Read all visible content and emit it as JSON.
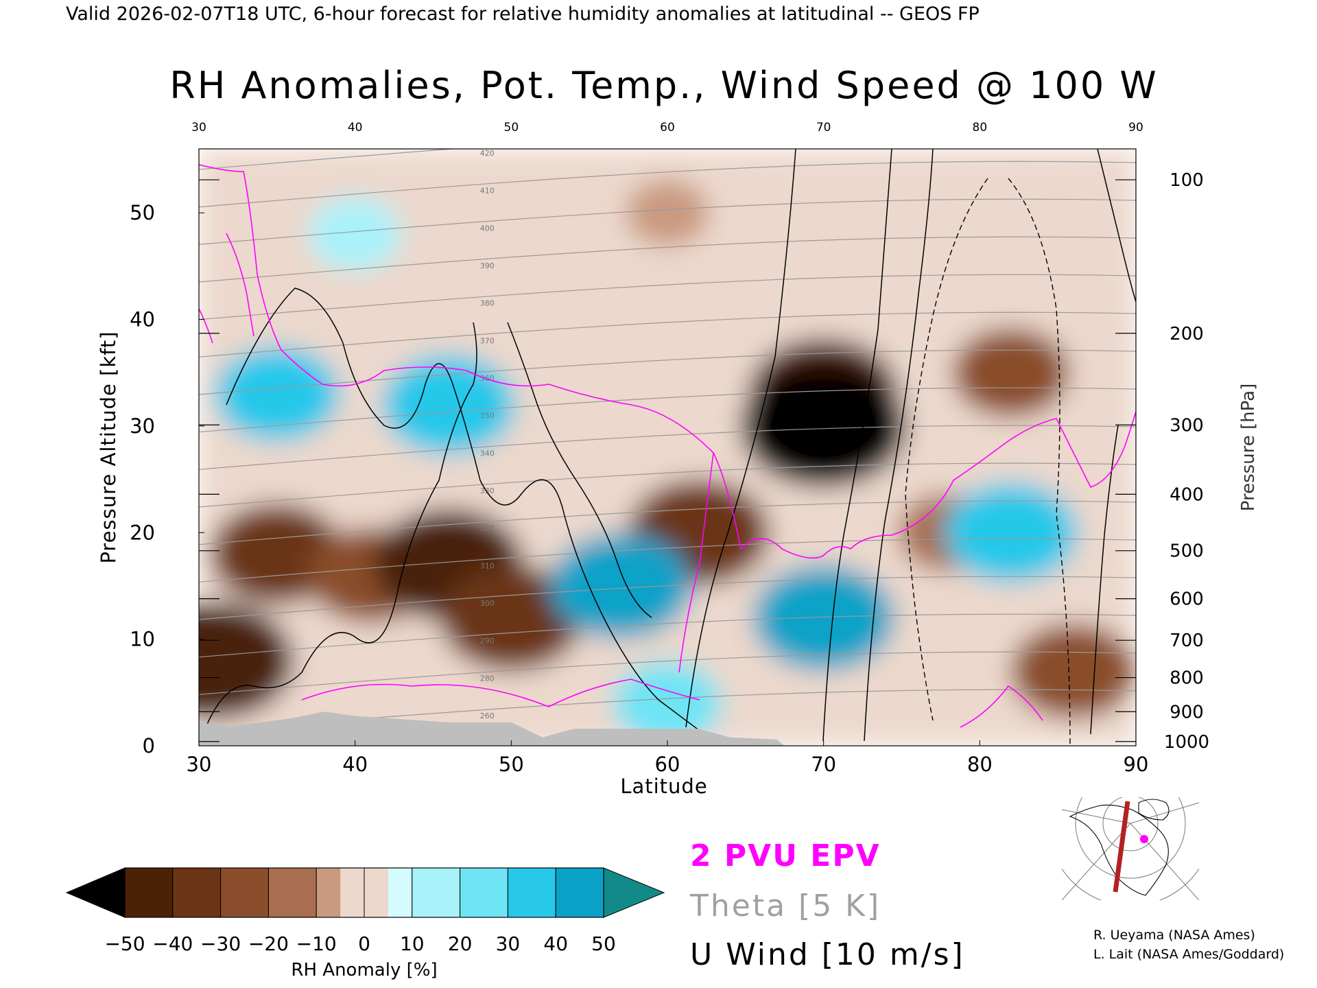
{
  "header": {
    "valid_line": "Valid 2026-02-07T18 UTC, 6-hour forecast for relative humidity anomalies at latitudinal -- GEOS FP"
  },
  "chart_data": {
    "type": "heatmap",
    "title": "RH Anomalies, Pot. Temp., Wind Speed @ 100 W",
    "xlabel": "Latitude",
    "ylabel_left": "Pressure Altitude [kft]",
    "ylabel_right": "Pressure [hPa]",
    "xlim": [
      30,
      90
    ],
    "ylim": [
      0,
      56
    ],
    "x_ticks": [
      30,
      40,
      50,
      60,
      70,
      80,
      90
    ],
    "x_ticks_top": [
      30,
      40,
      50,
      60,
      70,
      80,
      90
    ],
    "y_ticks": [
      0,
      10,
      20,
      30,
      40,
      50
    ],
    "pressure_ticks": [
      {
        "hpa": 100,
        "kft": 53.1
      },
      {
        "hpa": 200,
        "kft": 38.7
      },
      {
        "hpa": 300,
        "kft": 30.1
      },
      {
        "hpa": 400,
        "kft": 23.6
      },
      {
        "hpa": 500,
        "kft": 18.3
      },
      {
        "hpa": 600,
        "kft": 13.8
      },
      {
        "hpa": 700,
        "kft": 9.9
      },
      {
        "hpa": 800,
        "kft": 6.4
      },
      {
        "hpa": 900,
        "kft": 3.2
      },
      {
        "hpa": 1000,
        "kft": 0.4
      }
    ],
    "rh_anomaly_regions": [
      {
        "lat": 31,
        "kft": 8,
        "value": -50
      },
      {
        "lat": 35,
        "kft": 18,
        "value": -35
      },
      {
        "lat": 41,
        "kft": 16,
        "value": -30
      },
      {
        "lat": 46,
        "kft": 17,
        "value": -45
      },
      {
        "lat": 50,
        "kft": 12,
        "value": -40
      },
      {
        "lat": 62,
        "kft": 20,
        "value": -40
      },
      {
        "lat": 70,
        "kft": 33,
        "value": -45
      },
      {
        "lat": 70,
        "kft": 30,
        "value": -55
      },
      {
        "lat": 82,
        "kft": 35,
        "value": -25
      },
      {
        "lat": 78,
        "kft": 20,
        "value": -15
      },
      {
        "lat": 86,
        "kft": 7,
        "value": -30
      },
      {
        "lat": 35,
        "kft": 33,
        "value": 30
      },
      {
        "lat": 46,
        "kft": 32,
        "value": 35
      },
      {
        "lat": 57,
        "kft": 15,
        "value": 40
      },
      {
        "lat": 70,
        "kft": 12,
        "value": 40
      },
      {
        "lat": 82,
        "kft": 20,
        "value": 35
      },
      {
        "lat": 60,
        "kft": 4,
        "value": 20
      },
      {
        "lat": 60,
        "kft": 50,
        "value": -5
      },
      {
        "lat": 40,
        "kft": 48,
        "value": 10
      }
    ],
    "theta_contours_K": [
      260,
      280,
      290,
      300,
      310,
      320,
      330,
      340,
      350,
      360,
      370,
      380,
      390,
      400,
      410,
      420
    ],
    "u_wind_contours_ms": [
      -10,
      0,
      10,
      30
    ],
    "terrain": [
      {
        "lat": 30,
        "kft": 2.2
      },
      {
        "lat": 32,
        "kft": 1.8
      },
      {
        "lat": 34,
        "kft": 2.2
      },
      {
        "lat": 36,
        "kft": 2.6
      },
      {
        "lat": 38,
        "kft": 3.2
      },
      {
        "lat": 40,
        "kft": 2.8
      },
      {
        "lat": 43,
        "kft": 2.5
      },
      {
        "lat": 46,
        "kft": 2.2
      },
      {
        "lat": 50,
        "kft": 2.2
      },
      {
        "lat": 52,
        "kft": 0.8
      },
      {
        "lat": 54,
        "kft": 1.6
      },
      {
        "lat": 58,
        "kft": 1.6
      },
      {
        "lat": 62,
        "kft": 1.6
      },
      {
        "lat": 64,
        "kft": 0.8
      },
      {
        "lat": 67,
        "kft": 0.6
      },
      {
        "lat": 67.5,
        "kft": 0
      }
    ],
    "legend": {
      "pv_label": "2 PVU EPV",
      "pv_color": "#ff00ff",
      "theta_label": "Theta [5 K]",
      "theta_color": "#a0a0a0",
      "wind_label": "U Wind [10 m/s]",
      "wind_color": "#000000"
    },
    "colorbar": {
      "label": "RH Anomaly [%]",
      "ticks": [
        -50,
        -40,
        -30,
        -20,
        -10,
        0,
        10,
        20,
        30,
        40,
        50
      ],
      "colors": [
        "#4a2208",
        "#6b3415",
        "#8a4e2c",
        "#a86e4f",
        "#c99a80",
        "#ecd8cc",
        "#d4fbfe",
        "#a8f2fa",
        "#6ee4f5",
        "#27c8ea",
        "#0aa2c8",
        "#0e7f95"
      ],
      "under_color": "#000000",
      "over_color": "#138a8a"
    }
  },
  "credits": {
    "line1": "R. Ueyama (NASA Ames)",
    "line2": "L. Lait (NASA Ames/Goddard)"
  },
  "inset_map": {
    "marker_color": "#ff00ff",
    "section_color": "#b22222"
  }
}
